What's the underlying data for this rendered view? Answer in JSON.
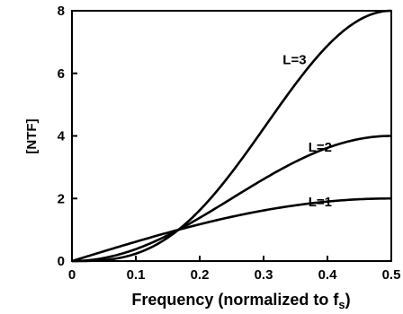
{
  "chart_data": {
    "type": "line",
    "title": "",
    "xlabel_main": "Frequency (normalized to f",
    "xlabel_sub": "s",
    "xlabel_close": ")",
    "ylabel": "[NTF]",
    "xlim": [
      0,
      0.5
    ],
    "ylim": [
      0,
      8
    ],
    "xticks": [
      "0",
      "0.1",
      "0.2",
      "0.3",
      "0.4",
      "0.5"
    ],
    "yticks": [
      "0",
      "2",
      "4",
      "6",
      "8"
    ],
    "grid": false,
    "series": [
      {
        "name": "L=1",
        "order": 1,
        "label_at": [
          0.37,
          1.75
        ]
      },
      {
        "name": "L=2",
        "order": 2,
        "label_at": [
          0.37,
          3.5
        ]
      },
      {
        "name": "L=3",
        "order": 3,
        "label_at": [
          0.33,
          6.3
        ]
      }
    ],
    "formula": "(2*sin(pi*f))^L"
  }
}
